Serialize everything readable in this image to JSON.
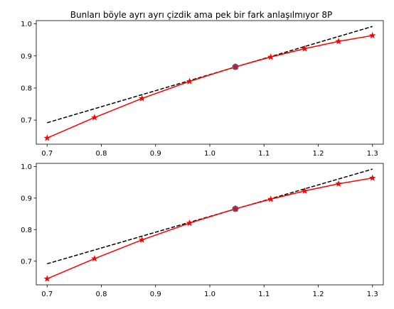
{
  "figure_title": "Bunları böyle ayrı ayrı çizdik ama pek bir fark anlaşılmıyor 8P",
  "colors": {
    "curve": "#ff0000",
    "tangent": "#000000",
    "point": "#1f77b4",
    "axes": "#000000",
    "background": "#ffffff"
  },
  "chart_data": [
    {
      "type": "line",
      "title": "Bunları böyle ayrı ayrı çizdik ama pek bir fark anlaşılmıyor 8P",
      "xlabel": "",
      "ylabel": "",
      "xlim": [
        0.68,
        1.32
      ],
      "ylim": [
        0.625,
        1.01
      ],
      "grid": false,
      "xticks": [
        0.7,
        0.8,
        0.9,
        1.0,
        1.1,
        1.2,
        1.3
      ],
      "xtick_labels": [
        "0.7",
        "0.8",
        "0.9",
        "1.0",
        "1.1",
        "1.2",
        "1.3"
      ],
      "yticks": [
        0.7,
        0.8,
        0.9,
        1.0
      ],
      "ytick_labels": [
        "0.7",
        "0.8",
        "0.9",
        "1.0"
      ],
      "series": [
        {
          "style": "solid red line with star markers",
          "x": [
            0.7,
            0.7875,
            0.875,
            0.9625,
            1.0472,
            1.1125,
            1.175,
            1.2375,
            1.3
          ],
          "y": [
            0.6442,
            0.7082,
            0.7675,
            0.8206,
            0.866,
            0.8966,
            0.9227,
            0.9453,
            0.9636
          ]
        },
        {
          "style": "dashed black line",
          "x": [
            0.7,
            1.3
          ],
          "y": [
            0.6918,
            0.9918
          ]
        },
        {
          "style": "blue dot",
          "x": [
            1.0472
          ],
          "y": [
            0.866
          ]
        }
      ]
    },
    {
      "type": "line",
      "title": "",
      "xlabel": "",
      "ylabel": "",
      "xlim": [
        0.68,
        1.32
      ],
      "ylim": [
        0.625,
        1.01
      ],
      "grid": false,
      "xticks": [
        0.7,
        0.8,
        0.9,
        1.0,
        1.1,
        1.2,
        1.3
      ],
      "xtick_labels": [
        "0.7",
        "0.8",
        "0.9",
        "1.0",
        "1.1",
        "1.2",
        "1.3"
      ],
      "yticks": [
        0.7,
        0.8,
        0.9,
        1.0
      ],
      "ytick_labels": [
        "0.7",
        "0.8",
        "0.9",
        "1.0"
      ],
      "series": [
        {
          "style": "solid red line with star markers",
          "x": [
            0.7,
            0.7875,
            0.875,
            0.9625,
            1.0472,
            1.1125,
            1.175,
            1.2375,
            1.3
          ],
          "y": [
            0.6442,
            0.7082,
            0.7675,
            0.8206,
            0.866,
            0.8966,
            0.9227,
            0.9453,
            0.9636
          ]
        },
        {
          "style": "dashed black line",
          "x": [
            0.7,
            1.3
          ],
          "y": [
            0.6918,
            0.9918
          ]
        },
        {
          "style": "blue dot",
          "x": [
            1.0472
          ],
          "y": [
            0.866
          ]
        }
      ]
    }
  ]
}
